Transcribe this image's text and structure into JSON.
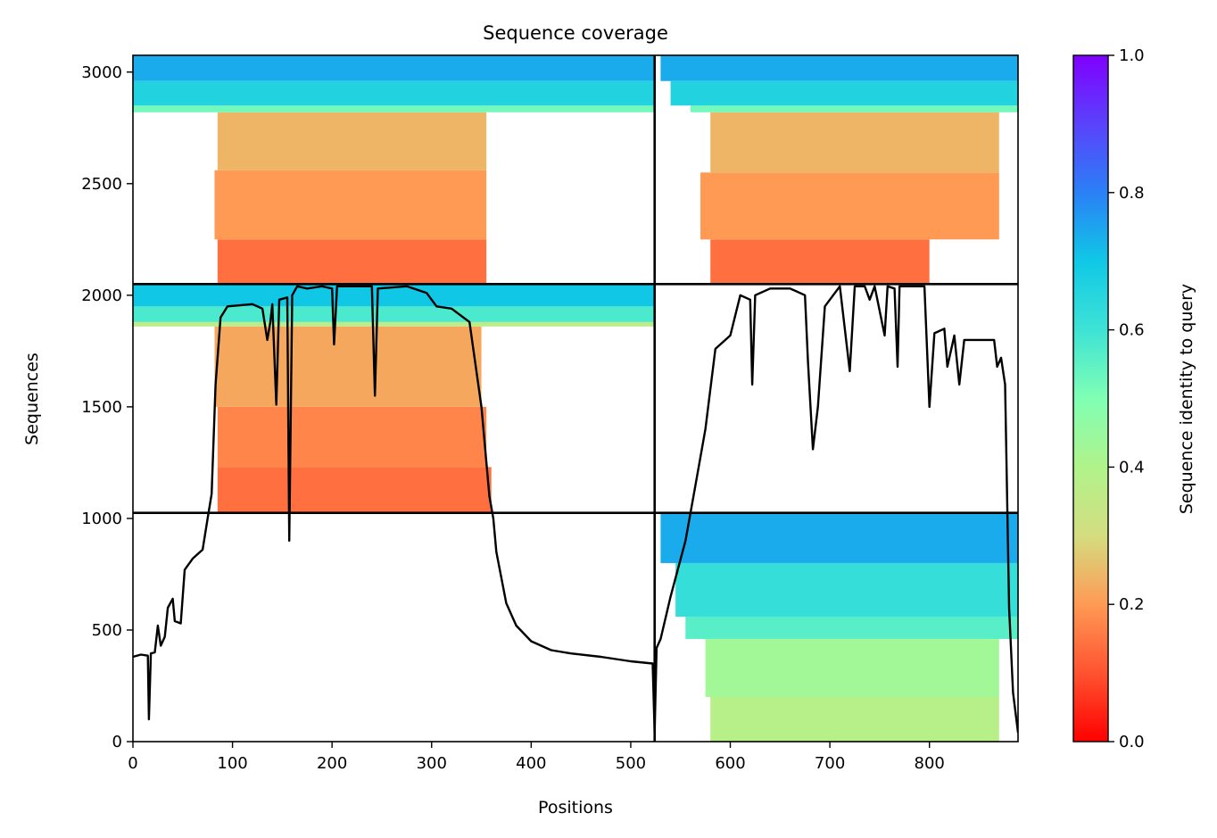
{
  "chart_data": {
    "type": "heatmap",
    "title": "Sequence coverage",
    "xlabel": "Positions",
    "ylabel": "Sequences",
    "xlim": [
      0,
      889
    ],
    "ylim": [
      0,
      3075
    ],
    "x_ticks": [
      {
        "value": 0,
        "label": "0"
      },
      {
        "value": 100,
        "label": "100"
      },
      {
        "value": 200,
        "label": "200"
      },
      {
        "value": 300,
        "label": "300"
      },
      {
        "value": 400,
        "label": "400"
      },
      {
        "value": 500,
        "label": "500"
      },
      {
        "value": 600,
        "label": "600"
      },
      {
        "value": 700,
        "label": "700"
      },
      {
        "value": 800,
        "label": "800"
      }
    ],
    "y_ticks": [
      {
        "value": 0,
        "label": "0"
      },
      {
        "value": 500,
        "label": "500"
      },
      {
        "value": 1000,
        "label": "1000"
      },
      {
        "value": 1500,
        "label": "1500"
      },
      {
        "value": 2000,
        "label": "2000"
      },
      {
        "value": 2500,
        "label": "2500"
      },
      {
        "value": 3000,
        "label": "3000"
      }
    ],
    "colorbar": {
      "label": "Sequence identity to query",
      "colormap": "rainbow_r",
      "range": [
        0,
        1
      ],
      "ticks": [
        {
          "value": 0.0,
          "label": "0.0"
        },
        {
          "value": 0.2,
          "label": "0.2"
        },
        {
          "value": 0.4,
          "label": "0.4"
        },
        {
          "value": 0.6,
          "label": "0.6"
        },
        {
          "value": 0.8,
          "label": "0.8"
        },
        {
          "value": 1.0,
          "label": "1.0"
        }
      ]
    },
    "chain_breaks_x": [
      524
    ],
    "block_breaks_y": [
      1025,
      2050
    ],
    "blocks": [
      {
        "x_start": 0,
        "x_end": 524,
        "y_start": 1025,
        "y_end": 2050,
        "bands": [
          {
            "y_from": 1025,
            "y_to": 1230,
            "x_from": 85,
            "x_to": 360,
            "identity": 0.14
          },
          {
            "y_from": 1230,
            "y_to": 1500,
            "x_from": 85,
            "x_to": 355,
            "identity": 0.17
          },
          {
            "y_from": 1500,
            "y_to": 1860,
            "x_from": 82,
            "x_to": 350,
            "identity": 0.22
          },
          {
            "y_from": 1860,
            "y_to": 1880,
            "x_from": 0,
            "x_to": 524,
            "identity": 0.36
          },
          {
            "y_from": 1880,
            "y_to": 1950,
            "x_from": 0,
            "x_to": 524,
            "identity": 0.58
          },
          {
            "y_from": 1950,
            "y_to": 2050,
            "x_from": 0,
            "x_to": 524,
            "identity": 0.7
          }
        ]
      },
      {
        "x_start": 0,
        "x_end": 524,
        "y_start": 2050,
        "y_end": 3075,
        "bands": [
          {
            "y_from": 2050,
            "y_to": 2250,
            "x_from": 85,
            "x_to": 355,
            "identity": 0.14
          },
          {
            "y_from": 2250,
            "y_to": 2560,
            "x_from": 82,
            "x_to": 355,
            "identity": 0.2
          },
          {
            "y_from": 2560,
            "y_to": 2820,
            "x_from": 85,
            "x_to": 355,
            "identity": 0.24
          },
          {
            "y_from": 2820,
            "y_to": 2850,
            "x_from": 0,
            "x_to": 524,
            "identity": 0.52
          },
          {
            "y_from": 2850,
            "y_to": 2960,
            "x_from": 0,
            "x_to": 524,
            "identity": 0.66
          },
          {
            "y_from": 2960,
            "y_to": 3075,
            "x_from": 0,
            "x_to": 524,
            "identity": 0.74
          }
        ]
      },
      {
        "x_start": 524,
        "x_end": 889,
        "y_start": 2050,
        "y_end": 3075,
        "bands": [
          {
            "y_from": 2050,
            "y_to": 2250,
            "x_from": 580,
            "x_to": 800,
            "identity": 0.14
          },
          {
            "y_from": 2250,
            "y_to": 2550,
            "x_from": 570,
            "x_to": 870,
            "identity": 0.2
          },
          {
            "y_from": 2550,
            "y_to": 2820,
            "x_from": 580,
            "x_to": 870,
            "identity": 0.24
          },
          {
            "y_from": 2820,
            "y_to": 2850,
            "x_from": 560,
            "x_to": 889,
            "identity": 0.52
          },
          {
            "y_from": 2850,
            "y_to": 2960,
            "x_from": 540,
            "x_to": 889,
            "identity": 0.66
          },
          {
            "y_from": 2960,
            "y_to": 3075,
            "x_from": 530,
            "x_to": 889,
            "identity": 0.74
          }
        ]
      },
      {
        "x_start": 524,
        "x_end": 889,
        "y_start": 0,
        "y_end": 1025,
        "bands": [
          {
            "y_from": 0,
            "y_to": 200,
            "x_from": 580,
            "x_to": 870,
            "identity": 0.38
          },
          {
            "y_from": 200,
            "y_to": 460,
            "x_from": 575,
            "x_to": 870,
            "identity": 0.43
          },
          {
            "y_from": 460,
            "y_to": 560,
            "x_from": 555,
            "x_to": 889,
            "identity": 0.56
          },
          {
            "y_from": 560,
            "y_to": 800,
            "x_from": 545,
            "x_to": 889,
            "identity": 0.62
          },
          {
            "y_from": 800,
            "y_to": 1025,
            "x_from": 530,
            "x_to": 889,
            "identity": 0.74
          }
        ]
      }
    ],
    "coverage_line": {
      "color": "#000000",
      "points": [
        [
          0,
          380
        ],
        [
          8,
          390
        ],
        [
          15,
          385
        ],
        [
          16,
          100
        ],
        [
          18,
          395
        ],
        [
          22,
          400
        ],
        [
          25,
          520
        ],
        [
          28,
          430
        ],
        [
          32,
          470
        ],
        [
          35,
          600
        ],
        [
          40,
          640
        ],
        [
          42,
          540
        ],
        [
          48,
          530
        ],
        [
          52,
          770
        ],
        [
          60,
          820
        ],
        [
          70,
          860
        ],
        [
          75,
          1000
        ],
        [
          79,
          1110
        ],
        [
          83,
          1600
        ],
        [
          88,
          1900
        ],
        [
          95,
          1950
        ],
        [
          120,
          1960
        ],
        [
          130,
          1940
        ],
        [
          135,
          1800
        ],
        [
          138,
          1880
        ],
        [
          140,
          1960
        ],
        [
          144,
          1510
        ],
        [
          147,
          1980
        ],
        [
          155,
          1990
        ],
        [
          157,
          900
        ],
        [
          160,
          2000
        ],
        [
          165,
          2040
        ],
        [
          175,
          2030
        ],
        [
          190,
          2040
        ],
        [
          200,
          2030
        ],
        [
          202,
          1780
        ],
        [
          205,
          2040
        ],
        [
          240,
          2040
        ],
        [
          243,
          1550
        ],
        [
          246,
          2030
        ],
        [
          275,
          2040
        ],
        [
          295,
          2010
        ],
        [
          305,
          1950
        ],
        [
          320,
          1940
        ],
        [
          338,
          1880
        ],
        [
          350,
          1500
        ],
        [
          358,
          1100
        ],
        [
          362,
          1000
        ],
        [
          365,
          850
        ],
        [
          375,
          620
        ],
        [
          385,
          520
        ],
        [
          400,
          450
        ],
        [
          420,
          410
        ],
        [
          440,
          395
        ],
        [
          470,
          380
        ],
        [
          500,
          360
        ],
        [
          522,
          350
        ],
        [
          524,
          40
        ],
        [
          526,
          420
        ],
        [
          530,
          460
        ],
        [
          540,
          650
        ],
        [
          555,
          900
        ],
        [
          565,
          1150
        ],
        [
          575,
          1400
        ],
        [
          585,
          1760
        ],
        [
          600,
          1820
        ],
        [
          610,
          2000
        ],
        [
          620,
          1980
        ],
        [
          622,
          1600
        ],
        [
          625,
          2000
        ],
        [
          640,
          2030
        ],
        [
          660,
          2030
        ],
        [
          675,
          2000
        ],
        [
          678,
          1700
        ],
        [
          683,
          1310
        ],
        [
          688,
          1500
        ],
        [
          695,
          1950
        ],
        [
          710,
          2040
        ],
        [
          720,
          1660
        ],
        [
          725,
          2040
        ],
        [
          735,
          2040
        ],
        [
          740,
          1980
        ],
        [
          745,
          2040
        ],
        [
          755,
          1820
        ],
        [
          758,
          2040
        ],
        [
          765,
          2030
        ],
        [
          768,
          1680
        ],
        [
          770,
          2040
        ],
        [
          795,
          2040
        ],
        [
          800,
          1500
        ],
        [
          805,
          1830
        ],
        [
          815,
          1850
        ],
        [
          818,
          1680
        ],
        [
          825,
          1820
        ],
        [
          830,
          1600
        ],
        [
          835,
          1800
        ],
        [
          865,
          1800
        ],
        [
          868,
          1680
        ],
        [
          872,
          1720
        ],
        [
          876,
          1600
        ],
        [
          880,
          600
        ],
        [
          884,
          220
        ],
        [
          889,
          40
        ]
      ]
    }
  }
}
